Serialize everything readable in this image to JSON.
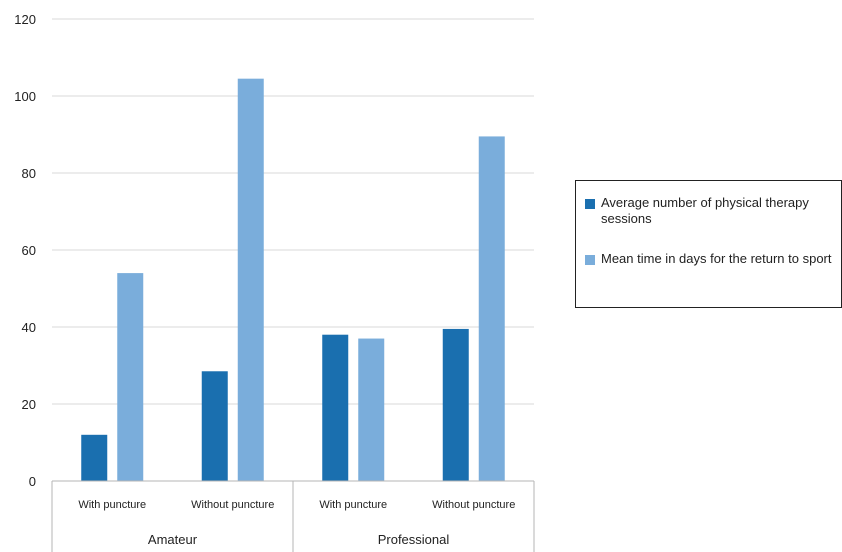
{
  "chart_data": {
    "type": "bar",
    "title": "",
    "xlabel": "",
    "ylabel": "",
    "ylim": [
      0,
      120
    ],
    "y_ticks": [
      0,
      20,
      40,
      60,
      80,
      100,
      120
    ],
    "grid": true,
    "legend_position": "right",
    "groups": [
      {
        "label": "Amateur",
        "categories": [
          "With puncture",
          "Without puncture"
        ]
      },
      {
        "label": "Professional",
        "categories": [
          "With puncture",
          "Without puncture"
        ]
      }
    ],
    "categories": [
      "With puncture",
      "Without puncture",
      "With puncture",
      "Without puncture"
    ],
    "series": [
      {
        "name": "Average number of physical therapy sessions",
        "color": "#1a6faf",
        "values": [
          12,
          28.5,
          38,
          39.5
        ]
      },
      {
        "name": "Mean time in days for the return to sport",
        "color": "#7aaddb",
        "values": [
          54,
          104.5,
          37,
          89.5
        ]
      }
    ]
  }
}
